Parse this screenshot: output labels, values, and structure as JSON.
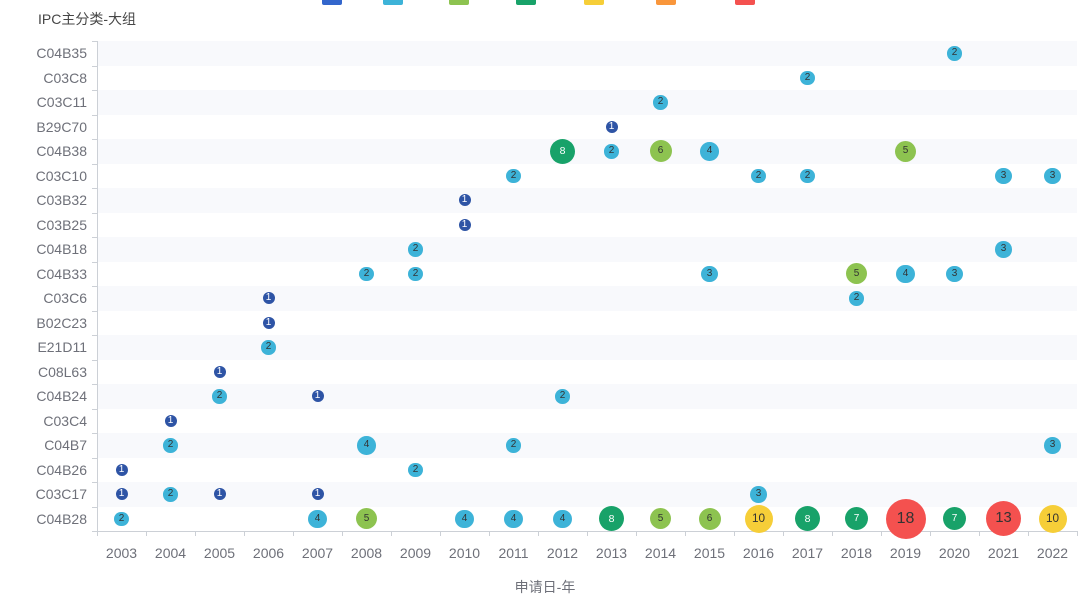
{
  "title": "IPC主分类-大组",
  "xlabel": "申请日-年",
  "legend": {
    "swatch_colors": [
      "#3366cc",
      "#3db3d8",
      "#8dc350",
      "#18a269",
      "#f6ce38",
      "#f9963b",
      "#f4514f"
    ],
    "swatch_x": [
      322,
      383,
      449,
      516,
      584,
      656,
      735
    ]
  },
  "chart_data": {
    "type": "scatter",
    "title": "IPC主分类-大组",
    "xlabel": "申请日-年",
    "ylabel": "IPC主分类-大组",
    "legend_position": "top",
    "grid": "row-stripes",
    "stripe_color": "#f8f9fc",
    "x_categories": [
      "2003",
      "2004",
      "2005",
      "2006",
      "2007",
      "2008",
      "2009",
      "2010",
      "2011",
      "2012",
      "2013",
      "2014",
      "2015",
      "2016",
      "2017",
      "2018",
      "2019",
      "2020",
      "2021",
      "2022"
    ],
    "y_categories": [
      "C04B35",
      "C03C8",
      "C03C11",
      "B29C70",
      "C04B38",
      "C03C10",
      "C03B32",
      "C03B25",
      "C04B18",
      "C04B33",
      "C03C6",
      "B02C23",
      "E21D11",
      "C08L63",
      "C04B24",
      "C03C4",
      "C04B7",
      "C04B26",
      "C03C17",
      "C04B28"
    ],
    "color_scale": [
      {
        "min": 1,
        "max": 1,
        "color": "#2e54a5",
        "text_color": "#ffffff"
      },
      {
        "min": 2,
        "max": 4,
        "color": "#3db3d8",
        "text_color": "#333333"
      },
      {
        "min": 5,
        "max": 6,
        "color": "#8dc350",
        "text_color": "#333333"
      },
      {
        "min": 7,
        "max": 8,
        "color": "#18a269",
        "text_color": "#ffffff"
      },
      {
        "min": 9,
        "max": 10,
        "color": "#f6ce38",
        "text_color": "#333333"
      },
      {
        "min": 11,
        "max": 12,
        "color": "#f9963b",
        "text_color": "#333333"
      },
      {
        "min": 13,
        "max": 99,
        "color": "#f4514f",
        "text_color": "#333333"
      }
    ],
    "size_by_value": {
      "1": 12,
      "2": 14.5,
      "3": 16.5,
      "4": 18.5,
      "5": 21,
      "6": 22,
      "7": 23,
      "8": 25,
      "10": 28,
      "13": 35,
      "18": 40
    },
    "points": [
      {
        "ipc": "C04B35",
        "year": "2020",
        "value": 2
      },
      {
        "ipc": "C03C8",
        "year": "2017",
        "value": 2
      },
      {
        "ipc": "C03C11",
        "year": "2014",
        "value": 2
      },
      {
        "ipc": "B29C70",
        "year": "2013",
        "value": 1
      },
      {
        "ipc": "C04B38",
        "year": "2012",
        "value": 8
      },
      {
        "ipc": "C04B38",
        "year": "2013",
        "value": 2
      },
      {
        "ipc": "C04B38",
        "year": "2014",
        "value": 6
      },
      {
        "ipc": "C04B38",
        "year": "2015",
        "value": 4
      },
      {
        "ipc": "C04B38",
        "year": "2019",
        "value": 5
      },
      {
        "ipc": "C03C10",
        "year": "2011",
        "value": 2
      },
      {
        "ipc": "C03C10",
        "year": "2016",
        "value": 2
      },
      {
        "ipc": "C03C10",
        "year": "2017",
        "value": 2
      },
      {
        "ipc": "C03C10",
        "year": "2021",
        "value": 3
      },
      {
        "ipc": "C03C10",
        "year": "2022",
        "value": 3
      },
      {
        "ipc": "C03B32",
        "year": "2010",
        "value": 1
      },
      {
        "ipc": "C03B25",
        "year": "2010",
        "value": 1
      },
      {
        "ipc": "C04B18",
        "year": "2009",
        "value": 2
      },
      {
        "ipc": "C04B18",
        "year": "2021",
        "value": 3
      },
      {
        "ipc": "C04B33",
        "year": "2008",
        "value": 2
      },
      {
        "ipc": "C04B33",
        "year": "2009",
        "value": 2
      },
      {
        "ipc": "C04B33",
        "year": "2015",
        "value": 3
      },
      {
        "ipc": "C04B33",
        "year": "2018",
        "value": 5
      },
      {
        "ipc": "C04B33",
        "year": "2019",
        "value": 4
      },
      {
        "ipc": "C04B33",
        "year": "2020",
        "value": 3
      },
      {
        "ipc": "C03C6",
        "year": "2006",
        "value": 1
      },
      {
        "ipc": "C03C6",
        "year": "2018",
        "value": 2
      },
      {
        "ipc": "B02C23",
        "year": "2006",
        "value": 1
      },
      {
        "ipc": "E21D11",
        "year": "2006",
        "value": 2
      },
      {
        "ipc": "C08L63",
        "year": "2005",
        "value": 1
      },
      {
        "ipc": "C04B24",
        "year": "2005",
        "value": 2
      },
      {
        "ipc": "C04B24",
        "year": "2007",
        "value": 1
      },
      {
        "ipc": "C04B24",
        "year": "2012",
        "value": 2
      },
      {
        "ipc": "C03C4",
        "year": "2004",
        "value": 1
      },
      {
        "ipc": "C04B7",
        "year": "2004",
        "value": 2
      },
      {
        "ipc": "C04B7",
        "year": "2008",
        "value": 4
      },
      {
        "ipc": "C04B7",
        "year": "2011",
        "value": 2
      },
      {
        "ipc": "C04B7",
        "year": "2022",
        "value": 3
      },
      {
        "ipc": "C04B26",
        "year": "2003",
        "value": 1
      },
      {
        "ipc": "C04B26",
        "year": "2009",
        "value": 2
      },
      {
        "ipc": "C03C17",
        "year": "2003",
        "value": 1
      },
      {
        "ipc": "C03C17",
        "year": "2004",
        "value": 2
      },
      {
        "ipc": "C03C17",
        "year": "2005",
        "value": 1
      },
      {
        "ipc": "C03C17",
        "year": "2007",
        "value": 1
      },
      {
        "ipc": "C03C17",
        "year": "2016",
        "value": 3
      },
      {
        "ipc": "C04B28",
        "year": "2003",
        "value": 2
      },
      {
        "ipc": "C04B28",
        "year": "2007",
        "value": 4
      },
      {
        "ipc": "C04B28",
        "year": "2008",
        "value": 5
      },
      {
        "ipc": "C04B28",
        "year": "2010",
        "value": 4
      },
      {
        "ipc": "C04B28",
        "year": "2011",
        "value": 4
      },
      {
        "ipc": "C04B28",
        "year": "2012",
        "value": 4
      },
      {
        "ipc": "C04B28",
        "year": "2013",
        "value": 8
      },
      {
        "ipc": "C04B28",
        "year": "2014",
        "value": 5
      },
      {
        "ipc": "C04B28",
        "year": "2015",
        "value": 6
      },
      {
        "ipc": "C04B28",
        "year": "2016",
        "value": 10
      },
      {
        "ipc": "C04B28",
        "year": "2017",
        "value": 8
      },
      {
        "ipc": "C04B28",
        "year": "2018",
        "value": 7
      },
      {
        "ipc": "C04B28",
        "year": "2019",
        "value": 18
      },
      {
        "ipc": "C04B28",
        "year": "2020",
        "value": 7
      },
      {
        "ipc": "C04B28",
        "year": "2021",
        "value": 13
      },
      {
        "ipc": "C04B28",
        "year": "2022",
        "value": 10
      }
    ]
  }
}
